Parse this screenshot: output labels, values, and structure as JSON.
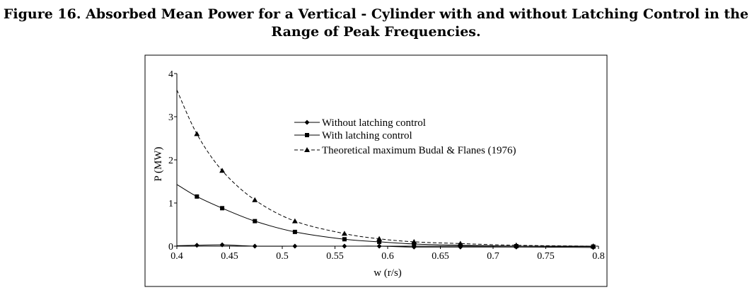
{
  "figure": {
    "title": "Figure 16. Absorbed Mean Power for a Vertical - Cylinder with and without Latching Control in the Range of Peak Frequencies."
  },
  "chart_data": {
    "type": "line",
    "xlabel": "w (r/s)",
    "ylabel": "P (MW)",
    "xlim": [
      0.4,
      0.8
    ],
    "ylim": [
      0,
      4
    ],
    "x_ticks": [
      "0.4",
      "0.45",
      "0.5",
      "0.55",
      "0.6",
      "0.65",
      "0.7",
      "0.75",
      "0.8"
    ],
    "y_ticks": [
      "0",
      "1",
      "2",
      "3",
      "4"
    ],
    "grid": false,
    "legend_position": "top-right",
    "series": [
      {
        "name": "Without latching control",
        "marker": "diamond",
        "line": "solid",
        "x": [
          0.4,
          0.419,
          0.443,
          0.474,
          0.512,
          0.559,
          0.592,
          0.625,
          0.669,
          0.722,
          0.795
        ],
        "y": [
          0.01,
          0.02,
          0.03,
          0.0,
          0.0,
          0.0,
          0.0,
          -0.02,
          -0.02,
          -0.02,
          -0.03
        ]
      },
      {
        "name": "With latching control",
        "marker": "square",
        "line": "solid",
        "x": [
          0.4,
          0.419,
          0.443,
          0.474,
          0.512,
          0.559,
          0.592,
          0.625,
          0.669,
          0.722,
          0.795
        ],
        "y": [
          1.43,
          1.15,
          0.88,
          0.58,
          0.33,
          0.16,
          0.1,
          0.05,
          0.02,
          0.0,
          -0.01
        ]
      },
      {
        "name": "Theoretical maximum Budal & Flanes (1976)",
        "marker": "triangle",
        "line": "dashed",
        "x": [
          0.4,
          0.419,
          0.443,
          0.474,
          0.512,
          0.559,
          0.592,
          0.625,
          0.669,
          0.722,
          0.795
        ],
        "y": [
          3.62,
          2.6,
          1.75,
          1.07,
          0.58,
          0.29,
          0.17,
          0.1,
          0.06,
          0.02,
          0.0
        ]
      }
    ]
  }
}
